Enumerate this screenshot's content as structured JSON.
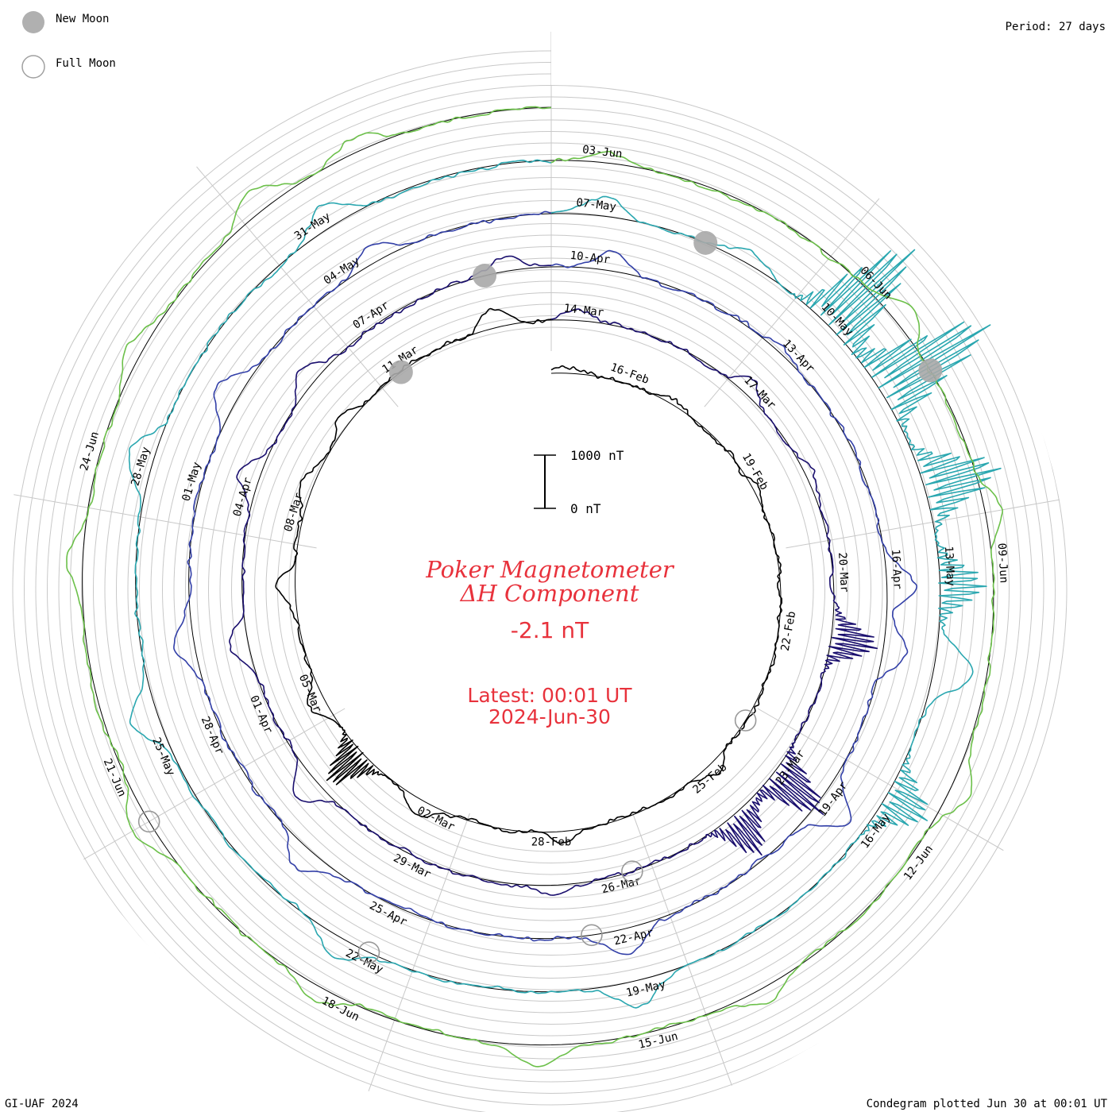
{
  "legend": {
    "new_moon_label": "New Moon",
    "full_moon_label": "Full Moon"
  },
  "header": {
    "period": "Period: 27 days"
  },
  "footer": {
    "credit": "GI-UAF 2024",
    "plotted": "Condegram plotted Jun 30 at 00:01 UT"
  },
  "center": {
    "title_line1": "Poker Magnetometer",
    "title_line2": "ΔH Component",
    "current_value": "-2.1 nT",
    "latest_line1": "Latest: 00:01 UT",
    "latest_line2": "2024-Jun-30"
  },
  "scale_bar": {
    "top_label": "1000 nT",
    "bottom_label": "0 nT"
  },
  "chart_data": {
    "type": "line",
    "layout": "condegram-spiral",
    "start_date": "2024-02-15",
    "end_date": "2024-06-30",
    "period_days": 27,
    "units": "nT",
    "current_value_nT": -2.1,
    "series_colors": [
      "#000000",
      "#1a0f6e",
      "#3340a8",
      "#2aa7b0",
      "#6cc04a",
      "#b8a81e",
      "#c0381a"
    ],
    "date_labels": [
      {
        "day": 1.5,
        "text": "16-Feb"
      },
      {
        "day": 4.5,
        "text": "19-Feb"
      },
      {
        "day": 7.5,
        "text": "22-Feb"
      },
      {
        "day": 10.5,
        "text": "25-Feb"
      },
      {
        "day": 13.5,
        "text": "28-Feb"
      },
      {
        "day": 15.5,
        "text": "02-Mar"
      },
      {
        "day": 18.5,
        "text": "05-Mar"
      },
      {
        "day": 21.5,
        "text": "08-Mar"
      },
      {
        "day": 24.5,
        "text": "11-Mar"
      },
      {
        "day": 27.5,
        "text": "14-Mar"
      },
      {
        "day": 30.5,
        "text": "17-Mar"
      },
      {
        "day": 33.5,
        "text": "20-Mar"
      },
      {
        "day": 36.5,
        "text": "23-Mar"
      },
      {
        "day": 39.5,
        "text": "26-Mar"
      },
      {
        "day": 42.5,
        "text": "29-Mar"
      },
      {
        "day": 45.5,
        "text": "01-Apr"
      },
      {
        "day": 48.5,
        "text": "04-Apr"
      },
      {
        "day": 51.5,
        "text": "07-Apr"
      },
      {
        "day": 54.5,
        "text": "10-Apr"
      },
      {
        "day": 57.5,
        "text": "13-Apr"
      },
      {
        "day": 60.5,
        "text": "16-Apr"
      },
      {
        "day": 63.5,
        "text": "19-Apr"
      },
      {
        "day": 66.5,
        "text": "22-Apr"
      },
      {
        "day": 69.5,
        "text": "25-Apr"
      },
      {
        "day": 72.5,
        "text": "28-Apr"
      },
      {
        "day": 75.5,
        "text": "01-May"
      },
      {
        "day": 78.5,
        "text": "04-May"
      },
      {
        "day": 81.5,
        "text": "07-May"
      },
      {
        "day": 84.5,
        "text": "10-May"
      },
      {
        "day": 87.5,
        "text": "13-May"
      },
      {
        "day": 90.5,
        "text": "16-May"
      },
      {
        "day": 93.5,
        "text": "19-May"
      },
      {
        "day": 96.5,
        "text": "22-May"
      },
      {
        "day": 99.5,
        "text": "25-May"
      },
      {
        "day": 102.5,
        "text": "28-May"
      },
      {
        "day": 105.5,
        "text": "31-May"
      },
      {
        "day": 108.5,
        "text": "03-Jun"
      },
      {
        "day": 111.5,
        "text": "06-Jun"
      },
      {
        "day": 114.5,
        "text": "09-Jun"
      },
      {
        "day": 117.5,
        "text": "12-Jun"
      },
      {
        "day": 120.5,
        "text": "15-Jun"
      },
      {
        "day": 123.5,
        "text": "18-Jun"
      },
      {
        "day": 126.5,
        "text": "21-Jun"
      },
      {
        "day": 129.5,
        "text": "24-Jun"
      }
    ],
    "new_moons": [
      24.4,
      53.1,
      82.8,
      112.5
    ],
    "full_moons": [
      9.3,
      39.3,
      67.0,
      96.5,
      126.0
    ],
    "disturbances": [
      {
        "day": 0.3,
        "nT": -150
      },
      {
        "day": 2.5,
        "nT": -80
      },
      {
        "day": 4.8,
        "nT": -120
      },
      {
        "day": 10.3,
        "nT": -250
      },
      {
        "day": 13.3,
        "nT": -220
      },
      {
        "day": 15.8,
        "nT": -300
      },
      {
        "day": 17.2,
        "nT": -900
      },
      {
        "day": 18.3,
        "nT": -350
      },
      {
        "day": 20.3,
        "nT": -320
      },
      {
        "day": 22.0,
        "nT": -240
      },
      {
        "day": 23.2,
        "nT": -200
      },
      {
        "day": 26.1,
        "nT": -330
      },
      {
        "day": 27.4,
        "nT": -180
      },
      {
        "day": 30.3,
        "nT": -250
      },
      {
        "day": 31.9,
        "nT": -200
      },
      {
        "day": 34.5,
        "nT": -900
      },
      {
        "day": 36.7,
        "nT": -1200
      },
      {
        "day": 37.6,
        "nT": -900
      },
      {
        "day": 40.5,
        "nT": -220
      },
      {
        "day": 44.3,
        "nT": -450
      },
      {
        "day": 46.5,
        "nT": -350
      },
      {
        "day": 48.8,
        "nT": -450
      },
      {
        "day": 50.3,
        "nT": -320
      },
      {
        "day": 53.4,
        "nT": -300
      },
      {
        "day": 54.8,
        "nT": -350
      },
      {
        "day": 57.3,
        "nT": -150
      },
      {
        "day": 60.7,
        "nT": -550
      },
      {
        "day": 61.5,
        "nT": -400
      },
      {
        "day": 63.6,
        "nT": -650
      },
      {
        "day": 66.6,
        "nT": -500
      },
      {
        "day": 70.7,
        "nT": -450
      },
      {
        "day": 73.6,
        "nT": -400
      },
      {
        "day": 76.6,
        "nT": -500
      },
      {
        "day": 78.9,
        "nT": -300
      },
      {
        "day": 81.6,
        "nT": -350
      },
      {
        "day": 83.3,
        "nT": -250
      },
      {
        "day": 84.5,
        "nT": -2200
      },
      {
        "day": 85.4,
        "nT": -2500
      },
      {
        "day": 86.6,
        "nT": -1500
      },
      {
        "day": 87.7,
        "nT": -900
      },
      {
        "day": 88.6,
        "nT": -700
      },
      {
        "day": 90.1,
        "nT": -900
      },
      {
        "day": 93.6,
        "nT": -450
      },
      {
        "day": 96.8,
        "nT": -400
      },
      {
        "day": 99.9,
        "nT": -500
      },
      {
        "day": 102.6,
        "nT": -500
      },
      {
        "day": 105.7,
        "nT": -400
      },
      {
        "day": 108.6,
        "nT": -200
      },
      {
        "day": 111.9,
        "nT": -400
      },
      {
        "day": 114.0,
        "nT": -300
      },
      {
        "day": 116.7,
        "nT": -400
      },
      {
        "day": 119.4,
        "nT": -250
      },
      {
        "day": 121.6,
        "nT": -350
      },
      {
        "day": 123.8,
        "nT": -300
      },
      {
        "day": 126.0,
        "nT": -400
      },
      {
        "day": 128.5,
        "nT": -300
      },
      {
        "day": 130.5,
        "nT": -250
      },
      {
        "day": 132.2,
        "nT": -450
      },
      {
        "day": 133.2,
        "nT": -250
      }
    ]
  }
}
